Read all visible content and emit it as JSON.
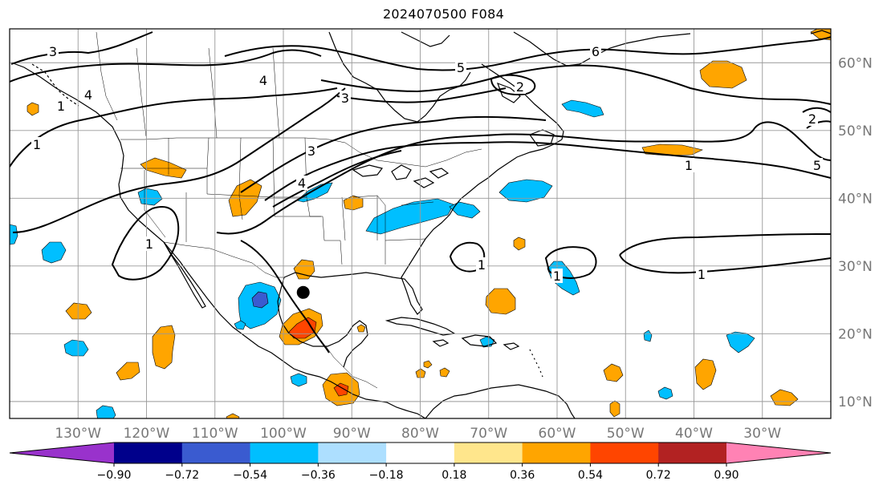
{
  "title": "2024070500 F084",
  "map": {
    "projection": "equirectangular",
    "extent_lon": [
      -140,
      -20
    ],
    "extent_lat": [
      7.5,
      65
    ],
    "gridlines": true,
    "lon_labels": [
      "130°W",
      "120°W",
      "110°W",
      "100°W",
      "90°W",
      "80°W",
      "70°W",
      "60°W",
      "50°W",
      "40°W",
      "30°W"
    ],
    "lat_labels": [
      "60°N",
      "50°N",
      "40°N",
      "30°N",
      "20°N",
      "10°N"
    ],
    "marker": {
      "lon": -97.1,
      "lat": 26.1,
      "color": "#000000"
    }
  },
  "contours": {
    "color": "#000000",
    "labels": [
      "3",
      "4",
      "4",
      "3",
      "6",
      "5",
      "2",
      "3",
      "4",
      "1",
      "1",
      "1",
      "1",
      "1",
      "1",
      "1",
      "5",
      "2"
    ]
  },
  "colorbar": {
    "ticks": [
      "−0.90",
      "−0.72",
      "−0.54",
      "−0.36",
      "−0.18",
      "0.18",
      "0.36",
      "0.54",
      "0.72",
      "0.90"
    ],
    "colors": [
      "#9932cc",
      "#00008b",
      "#3a5bd0",
      "#00bfff",
      "#addfff",
      "#ffffff",
      "#ffe68c",
      "#ffa500",
      "#ff4500",
      "#b22222",
      "#ff82b4"
    ],
    "extend": "both"
  }
}
